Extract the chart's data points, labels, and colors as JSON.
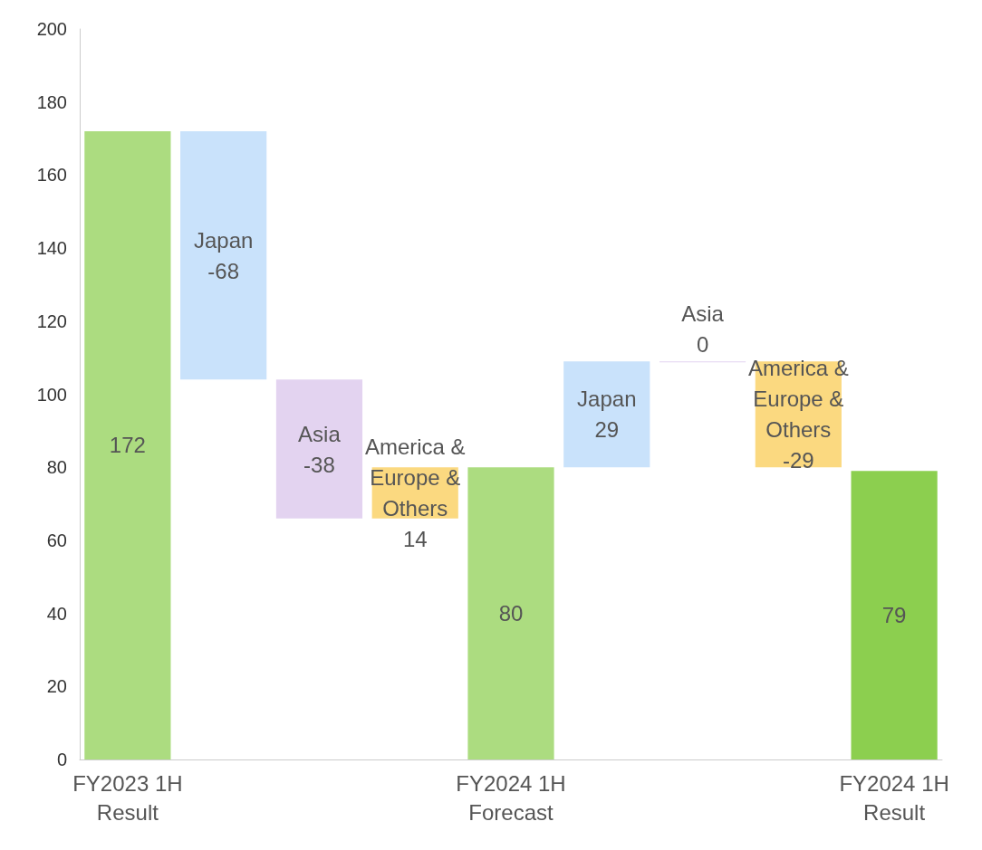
{
  "chart_data": {
    "type": "bar",
    "categories": [
      "FY2023 1H\nResult",
      null,
      null,
      null,
      "FY2024 1H\nForecast",
      null,
      null,
      null,
      "FY2024 1H\nResult"
    ],
    "values": [
      172,
      -68,
      -38,
      14,
      80,
      29,
      0,
      -29,
      79
    ],
    "base": [
      0,
      172,
      104,
      66,
      0,
      80,
      109,
      109,
      0
    ],
    "colors": [
      "#acdc80",
      "#c9e2fb",
      "#e3d3f0",
      "#fbd980",
      "#acdc80",
      "#c9e2fb",
      "#e3d3f0",
      "#fbd980",
      "#8ccf4f"
    ],
    "value_labels": [
      "172",
      "Japan\n-68",
      "Asia\n-38",
      "America &\nEurope &\nOthers\n14",
      "80",
      "Japan\n29",
      "Asia\n0",
      "America &\nEurope &\nOthers\n-29",
      "79"
    ],
    "ylim": [
      0,
      200
    ],
    "yticks": [
      0,
      20,
      40,
      60,
      80,
      100,
      120,
      140,
      160,
      180,
      200
    ]
  }
}
